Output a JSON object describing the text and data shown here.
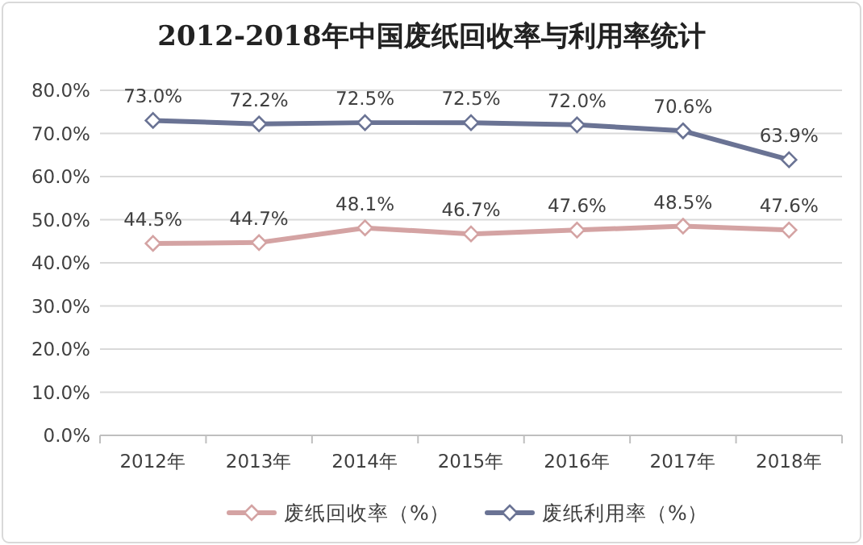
{
  "chart_data": {
    "type": "line",
    "title": "2012-2018年中国废纸回收率与利用率统计",
    "categories": [
      "2012年",
      "2013年",
      "2014年",
      "2015年",
      "2016年",
      "2017年",
      "2018年"
    ],
    "series": [
      {
        "name": "废纸回收率（%）",
        "color": "#d4a3a3",
        "values": [
          44.5,
          44.7,
          48.1,
          46.7,
          47.6,
          48.5,
          47.6
        ],
        "value_labels": [
          "44.5%",
          "44.7%",
          "48.1%",
          "46.7%",
          "47.6%",
          "48.5%",
          "47.6%"
        ]
      },
      {
        "name": "废纸利用率（%）",
        "color": "#6a7394",
        "values": [
          73.0,
          72.2,
          72.5,
          72.5,
          72.0,
          70.6,
          63.9
        ],
        "value_labels": [
          "73.0%",
          "72.2%",
          "72.5%",
          "72.5%",
          "72.0%",
          "70.6%",
          "63.9%"
        ]
      }
    ],
    "ylim": [
      0,
      80
    ],
    "yticks": [
      {
        "value": 0,
        "label": "0.0%"
      },
      {
        "value": 10,
        "label": "10.0%"
      },
      {
        "value": 20,
        "label": "20.0%"
      },
      {
        "value": 30,
        "label": "30.0%"
      },
      {
        "value": 40,
        "label": "40.0%"
      },
      {
        "value": 50,
        "label": "50.0%"
      },
      {
        "value": 60,
        "label": "60.0%"
      },
      {
        "value": 70,
        "label": "70.0%"
      },
      {
        "value": 80,
        "label": "80.0%"
      }
    ],
    "grid": "y",
    "legend": "bottom",
    "marker": "diamond",
    "line_style": "solid"
  }
}
